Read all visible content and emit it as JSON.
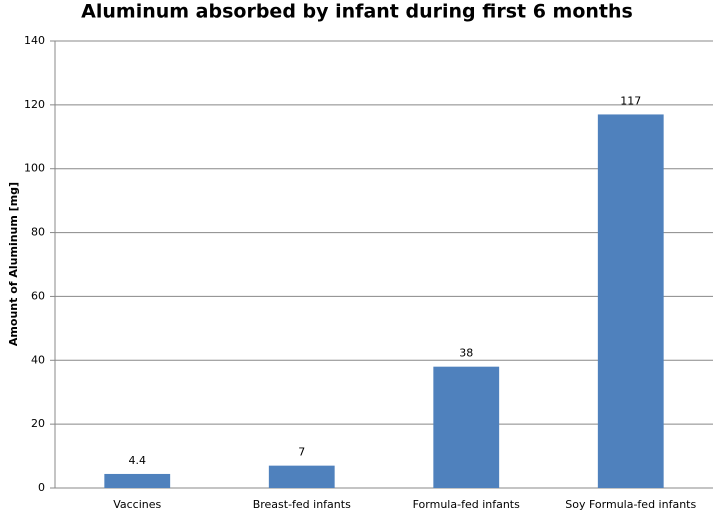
{
  "chart_data": {
    "type": "bar",
    "title": "Aluminum absorbed by infant during first 6 months",
    "ylabel": "Amount of Aluminum [mg]",
    "categories": [
      "Vaccines",
      "Breast-fed infants",
      "Formula-fed infants",
      "Soy Formula-fed infants"
    ],
    "values": [
      4.4,
      7,
      38,
      117
    ],
    "color": "#4f81bd",
    "ylim": [
      0,
      140
    ],
    "yticks": [
      0,
      20,
      40,
      60,
      80,
      100,
      120,
      140
    ],
    "grid": true
  }
}
